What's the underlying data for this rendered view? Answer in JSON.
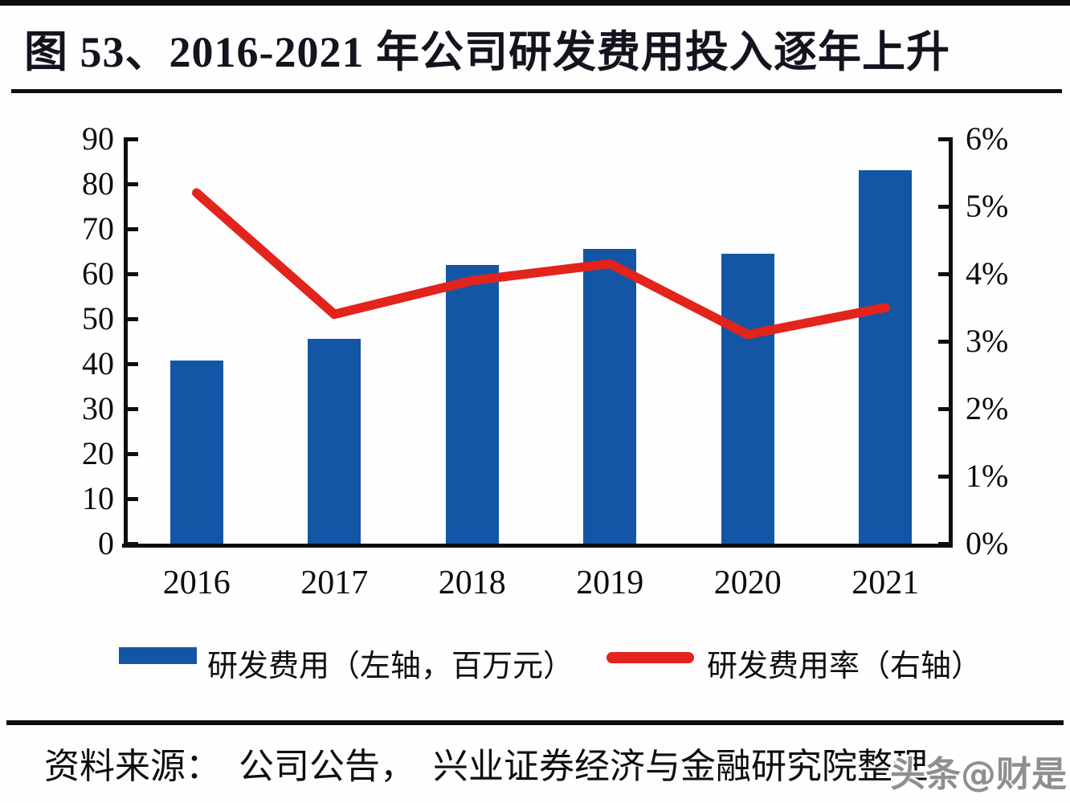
{
  "page": {
    "title": "图 53、2016-2021 年公司研发费用投入逐年上升"
  },
  "chart_data": {
    "type": "bar",
    "title": "2016-2021 年公司研发费用投入逐年上升",
    "categories": [
      "2016",
      "2017",
      "2018",
      "2019",
      "2020",
      "2021"
    ],
    "series": [
      {
        "name": "研发费用（左轴，百万元）",
        "type": "bar",
        "axis": "left",
        "color": "#1356a5",
        "values": [
          40.8,
          45.5,
          62,
          65.5,
          64.5,
          83
        ]
      },
      {
        "name": "研发费用率（右轴）",
        "type": "line",
        "axis": "right",
        "color": "#e2241c",
        "values": [
          5.2,
          3.4,
          3.9,
          4.15,
          3.1,
          3.5
        ]
      }
    ],
    "left_axis": {
      "min": 0,
      "max": 90,
      "step": 10,
      "tick_labels": [
        "0",
        "10",
        "20",
        "30",
        "40",
        "50",
        "60",
        "70",
        "80",
        "90"
      ]
    },
    "right_axis": {
      "min": 0,
      "max": 6,
      "step": 1,
      "tick_labels": [
        "0%",
        "1%",
        "2%",
        "3%",
        "4%",
        "5%",
        "6%"
      ]
    },
    "legend_position": "bottom",
    "grid": false
  },
  "legend": {
    "bar_label": "研发费用（左轴，百万元）",
    "line_label": "研发费用率（右轴）"
  },
  "footer": {
    "source_text": "资料来源：　公司公告，　兴业证券经济与金融研究院整理",
    "watermark": "头条@财是"
  }
}
